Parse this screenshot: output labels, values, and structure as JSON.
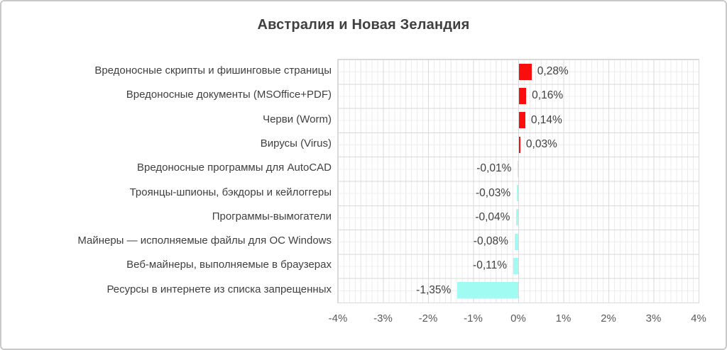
{
  "chart_data": {
    "type": "bar",
    "orientation": "horizontal",
    "title": "Австралия и Новая Зеландия",
    "categories": [
      "Вредоносные скрипты и фишинговые страницы",
      "Вредоносные документы (MSOffice+PDF)",
      "Черви (Worm)",
      "Вирусы (Virus)",
      "Вредоносные программы для AutoCAD",
      "Троянцы-шпионы, бэкдоры и кейлоггеры",
      "Программы-вымогатели",
      "Майнеры — исполняемые файлы для ОС Windows",
      "Веб-майнеры, выполняемые в браузерах",
      "Ресурсы в интернете из списка запрещенных"
    ],
    "values": [
      0.28,
      0.16,
      0.14,
      0.03,
      -0.01,
      -0.03,
      -0.04,
      -0.08,
      -0.11,
      -1.35
    ],
    "value_labels": [
      "0,28%",
      "0,16%",
      "0,14%",
      "0,03%",
      "-0,01%",
      "-0,03%",
      "-0,04%",
      "-0,08%",
      "-0,11%",
      "-1,35%"
    ],
    "x_tick_labels": [
      "-4%",
      "-3%",
      "-2%",
      "-1%",
      "0%",
      "1%",
      "2%",
      "3%",
      "4%"
    ],
    "x_tick_values": [
      -4,
      -3,
      -2,
      -1,
      0,
      1,
      2,
      3,
      4
    ],
    "xlim": [
      -4,
      4
    ],
    "grid": true,
    "legend_position": "none",
    "colors": {
      "positive_bar": "#f90d0d",
      "negative_bar": "#a0fbf2",
      "major_grid": "#d9d9d9",
      "minor_grid": "#ececec",
      "title_text": "#404040",
      "label_text": "#3f3f3f",
      "axis_text": "#595959"
    }
  }
}
